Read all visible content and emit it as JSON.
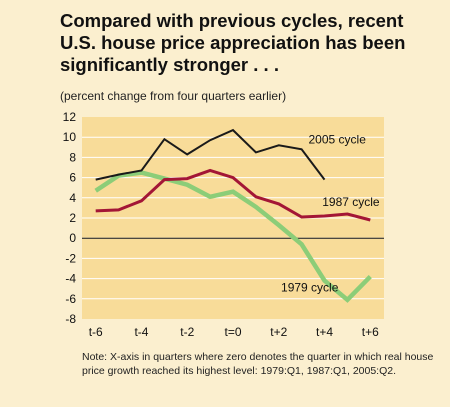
{
  "chart_data": {
    "type": "line",
    "title": "Compared with previous cycles, recent U.S. house price appreciation has been significantly stronger . . .",
    "subtitle": "(percent change from four quarters earlier)",
    "note": "Note: X-axis in quarters where zero denotes the quarter in which real house price growth reached its highest level: 1979:Q1, 1987:Q1, 2005:Q2.",
    "x": [
      -6,
      -5,
      -4,
      -3,
      -2,
      -1,
      0,
      1,
      2,
      3,
      4,
      5,
      6
    ],
    "x_tick_labels": [
      "t-6",
      "t-4",
      "t-2",
      "t=0",
      "t+2",
      "t+4",
      "t+6"
    ],
    "x_tick_values": [
      -6,
      -4,
      -2,
      0,
      2,
      4,
      6
    ],
    "ylim": [
      -8,
      12
    ],
    "y_ticks": [
      -8,
      -6,
      -4,
      -2,
      0,
      2,
      4,
      6,
      8,
      10,
      12
    ],
    "grid": true,
    "series": [
      {
        "name": "2005 cycle",
        "color": "#1a1a1a",
        "values": [
          5.8,
          6.3,
          6.7,
          9.8,
          8.3,
          9.7,
          10.7,
          8.5,
          9.2,
          8.8,
          5.8,
          null,
          null
        ]
      },
      {
        "name": "1987 cycle",
        "color": "#a31636",
        "values": [
          2.7,
          2.8,
          3.7,
          5.8,
          5.9,
          6.7,
          6.0,
          4.1,
          3.4,
          2.1,
          2.2,
          2.4,
          1.8
        ]
      },
      {
        "name": "1979 cycle",
        "color": "#8ccd78",
        "values": [
          4.7,
          6.2,
          6.5,
          5.9,
          5.3,
          4.1,
          4.6,
          3.1,
          1.3,
          -0.6,
          -4.2,
          -6.1,
          -3.8
        ]
      }
    ]
  }
}
